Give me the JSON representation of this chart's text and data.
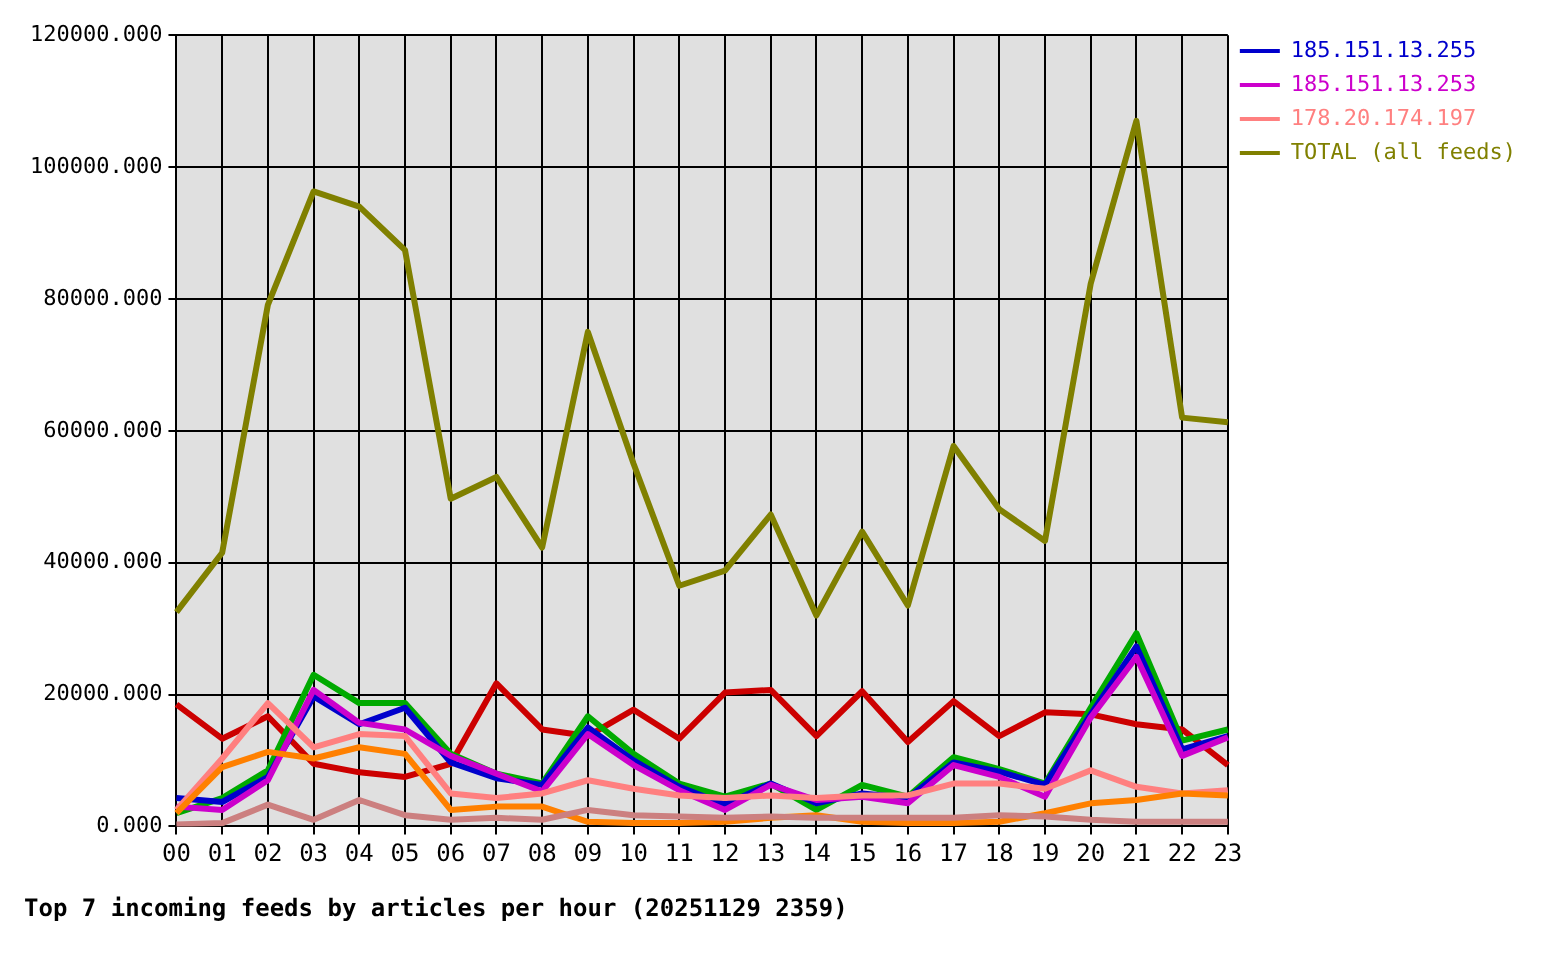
{
  "chart_data": {
    "type": "line",
    "title": "Top 7 incoming feeds by articles per hour (20251129 2359)",
    "categories": [
      "00",
      "01",
      "02",
      "03",
      "04",
      "05",
      "06",
      "07",
      "08",
      "09",
      "10",
      "11",
      "12",
      "13",
      "14",
      "15",
      "16",
      "17",
      "18",
      "19",
      "20",
      "21",
      "22",
      "23"
    ],
    "series": [
      {
        "color": "#cc0000",
        "values": [
          18500,
          13300,
          16700,
          9500,
          8200,
          7500,
          9500,
          21700,
          14700,
          13700,
          17700,
          13300,
          20300,
          20700,
          13700,
          20500,
          12800,
          19000,
          13700,
          17300,
          17000,
          15500,
          14700,
          9300
        ]
      },
      {
        "color": "#00aa00",
        "values": [
          2000,
          4300,
          8500,
          23000,
          18700,
          18700,
          11000,
          8000,
          6500,
          16700,
          11000,
          6500,
          4500,
          6500,
          2500,
          6300,
          4500,
          10500,
          8700,
          6500,
          18000,
          29300,
          13000,
          14700
        ]
      },
      {
        "name": "185.151.13.255",
        "color": "#0000cc",
        "values": [
          4300,
          3700,
          7500,
          19700,
          15500,
          18000,
          9700,
          7300,
          6300,
          15000,
          10000,
          6000,
          3300,
          6500,
          3500,
          5000,
          4300,
          9700,
          8300,
          6300,
          17000,
          27300,
          11700,
          13700
        ]
      },
      {
        "name": "185.151.13.253",
        "color": "#cc00cc",
        "values": [
          3000,
          2500,
          7000,
          20700,
          15700,
          14700,
          10700,
          8000,
          5300,
          14000,
          9300,
          5500,
          2500,
          6300,
          4000,
          4500,
          3500,
          9300,
          7500,
          4500,
          16500,
          25700,
          10700,
          13500
        ]
      },
      {
        "name": "178.20.174.197",
        "color": "#ff8080",
        "values": [
          2500,
          10300,
          18700,
          12000,
          14000,
          13700,
          5000,
          4300,
          5000,
          7000,
          5700,
          4700,
          4300,
          4700,
          4300,
          4700,
          4700,
          6500,
          6500,
          5700,
          8500,
          6000,
          5000,
          5500
        ]
      },
      {
        "color": "#ff8000",
        "values": [
          2000,
          9000,
          11300,
          10300,
          12000,
          11000,
          2500,
          3000,
          3000,
          700,
          500,
          500,
          700,
          1300,
          1700,
          700,
          500,
          500,
          700,
          2000,
          3500,
          4000,
          5000,
          4700
        ]
      },
      {
        "color": "#cc8080",
        "values": [
          300,
          500,
          3300,
          1000,
          4000,
          1700,
          1000,
          1300,
          1000,
          2500,
          1700,
          1500,
          1300,
          1500,
          1300,
          1300,
          1300,
          1300,
          1700,
          1500,
          1000,
          700,
          700,
          700
        ]
      },
      {
        "name": "TOTAL (all feeds)",
        "color": "#808000",
        "values": [
          32500,
          41500,
          79100,
          96300,
          94000,
          87400,
          49700,
          53000,
          42300,
          75000,
          55000,
          36500,
          38800,
          47300,
          32000,
          44700,
          33500,
          57700,
          48100,
          43300,
          82300,
          107000,
          62000,
          61300
        ]
      }
    ],
    "ylim": [
      0,
      120000
    ],
    "yticks": [
      {
        "value": 0,
        "label": "0.000"
      },
      {
        "value": 20000,
        "label": "20000.000"
      },
      {
        "value": 40000,
        "label": "40000.000"
      },
      {
        "value": 60000,
        "label": "60000.000"
      },
      {
        "value": 80000,
        "label": "80000.000"
      },
      {
        "value": 100000,
        "label": "100000.000"
      },
      {
        "value": 120000,
        "label": "120000.000"
      }
    ],
    "grid": true,
    "legend": "right",
    "marker": "none",
    "line_style": "solid"
  }
}
